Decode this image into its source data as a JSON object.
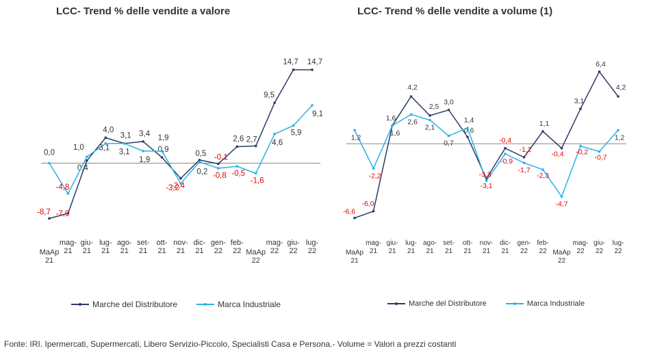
{
  "colors": {
    "distributore": "#2b3a63",
    "industriale": "#2ab0e8",
    "negative": "#e60000",
    "label": "#333333",
    "zero_line": "#888888"
  },
  "legend": {
    "distributore": "Marche del Distributore",
    "industriale": "Marca Industriale"
  },
  "footer": "Fonte: IRI. Ipermercati, Supermercati, Libero Servizio-Piccolo, Specialisti Casa e Persona.- Volume = Valori a prezzi costanti",
  "chart_data": [
    {
      "type": "line",
      "title": "LCC- Trend % delle vendite a valore",
      "categories": [
        [
          "MaAp",
          "21"
        ],
        [
          "mag-",
          "21"
        ],
        [
          "giu-",
          "21"
        ],
        [
          "lug-",
          "21"
        ],
        [
          "ago-",
          "21"
        ],
        [
          "set-",
          "21"
        ],
        [
          "ott-",
          "21"
        ],
        [
          "nov-",
          "21"
        ],
        [
          "dic-",
          "21"
        ],
        [
          "gen-",
          "22"
        ],
        [
          "feb-",
          "22"
        ],
        [
          "MaAp",
          "22"
        ],
        [
          "mag-",
          "22"
        ],
        [
          "giu-",
          "22"
        ],
        [
          "lug-",
          "22"
        ]
      ],
      "ylim": [
        -12,
        19
      ],
      "series": [
        {
          "name": "Marche del Distributore",
          "values": [
            -8.7,
            -7.9,
            0.4,
            4.0,
            3.1,
            3.4,
            0.9,
            -2.4,
            0.5,
            -0.1,
            2.6,
            2.7,
            9.5,
            14.7,
            14.7
          ],
          "labels": [
            "-8,7",
            "-7,9",
            "0,4",
            "4,0",
            "3,1",
            "3,4",
            "0,9",
            "-2,4",
            "0,5",
            "-0,1",
            "2,6",
            "2,7",
            "9,5",
            "14,7",
            "14,7"
          ]
        },
        {
          "name": "Marca Industriale",
          "values": [
            0.0,
            -4.8,
            1.0,
            3.1,
            3.1,
            1.9,
            1.9,
            -3.2,
            0.2,
            -0.8,
            -0.5,
            -1.6,
            4.6,
            5.9,
            9.1
          ],
          "labels": [
            "0,0",
            "-4,8",
            "1,0",
            "3,1",
            "3,1",
            "1,9",
            "1,9",
            "-3,2",
            "0,2",
            "-0,8",
            "-0,5",
            "-1,6",
            "4,6",
            "5,9",
            "9,1"
          ]
        }
      ]
    },
    {
      "type": "line",
      "title": "LCC- Trend % delle vendite a volume (1)",
      "categories": [
        [
          "MaAp",
          "21"
        ],
        [
          "mag-",
          "21"
        ],
        [
          "giu-",
          "21"
        ],
        [
          "lug-",
          "21"
        ],
        [
          "ago-",
          "21"
        ],
        [
          "set-",
          "21"
        ],
        [
          "ott-",
          "21"
        ],
        [
          "nov-",
          "21"
        ],
        [
          "dic-",
          "21"
        ],
        [
          "gen-",
          "22"
        ],
        [
          "feb-",
          "22"
        ],
        [
          "MaAp",
          "22"
        ],
        [
          "mag-",
          "22"
        ],
        [
          "giu-",
          "22"
        ],
        [
          "lug-",
          "22"
        ]
      ],
      "ylim": [
        -8.5,
        9
      ],
      "series": [
        {
          "name": "Marche del Distributore",
          "values": [
            -6.6,
            -6.0,
            1.6,
            4.2,
            2.5,
            3.0,
            0.6,
            -3.1,
            -0.4,
            -1.2,
            1.1,
            -0.4,
            3.1,
            6.4,
            4.2
          ],
          "labels": [
            "-6,6",
            "-6,0",
            "1,6",
            "4,2",
            "2,5",
            "3,0",
            "0,6",
            "-3,1",
            "-0,4",
            "-1,2",
            "1,1",
            "-0,4",
            "3,1",
            "6,4",
            "4,2"
          ]
        },
        {
          "name": "Marca Industriale",
          "values": [
            1.2,
            -2.2,
            1.6,
            2.6,
            2.1,
            0.7,
            1.4,
            -3.3,
            -0.9,
            -1.7,
            -2.3,
            -4.7,
            -0.2,
            -0.7,
            1.2
          ],
          "labels": [
            "1,2",
            "-2,2",
            "1,6",
            "2,6",
            "2,1",
            "0,7",
            "1,4",
            "-3,3",
            "-0,9",
            "-1,7",
            "-2,3",
            "-4,7",
            "-0,2",
            "-0,7",
            "1,2"
          ]
        }
      ]
    }
  ]
}
